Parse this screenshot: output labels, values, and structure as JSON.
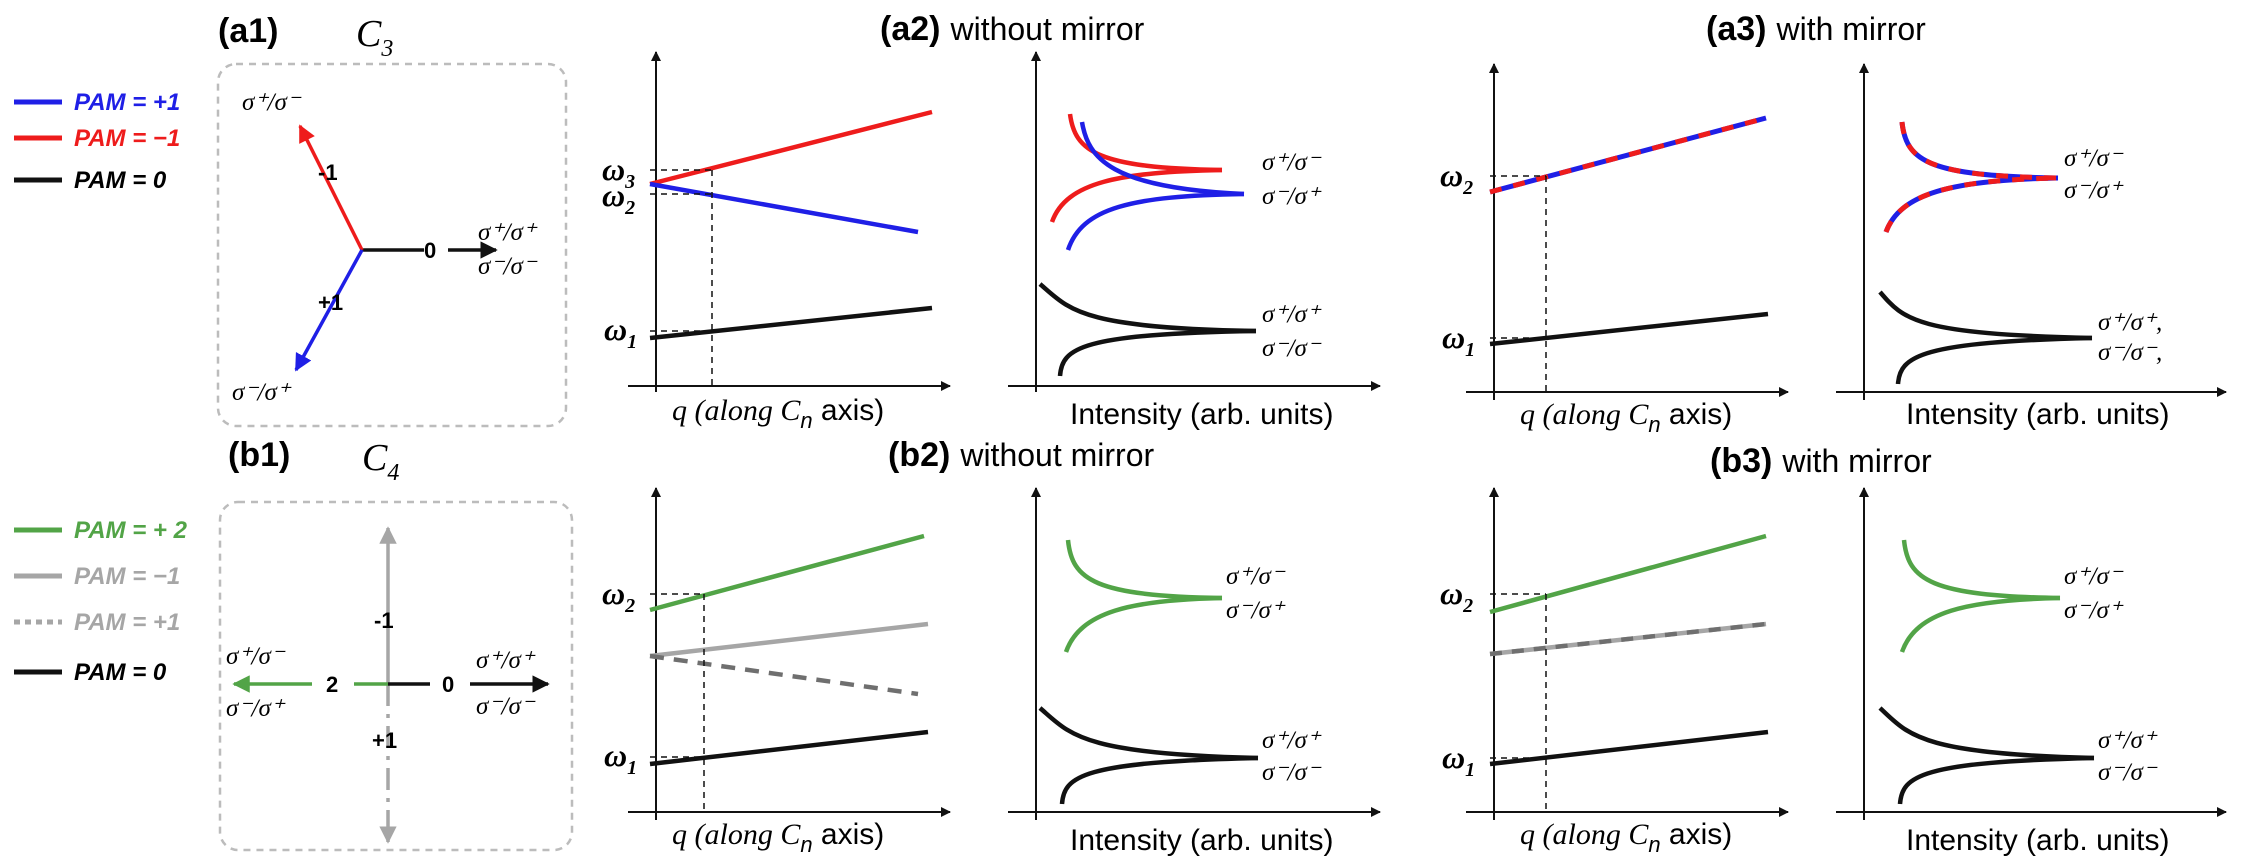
{
  "colors": {
    "blue": "#1f1fe6",
    "red": "#ee1c1c",
    "black": "#111111",
    "green": "#52a447",
    "gray": "#a6a6a6",
    "darkgray": "#6f6f6f",
    "box": "#bcbcbc"
  },
  "panels": {
    "a1": {
      "label": "(a1)",
      "symmetry": "C",
      "sub": "3"
    },
    "a2": {
      "label": "(a2)",
      "title": "without mirror"
    },
    "a3": {
      "label": "(a3)",
      "title": "with mirror"
    },
    "b1": {
      "label": "(b1)",
      "symmetry": "C",
      "sub": "4"
    },
    "b2": {
      "label": "(b2)",
      "title": "without mirror"
    },
    "b3": {
      "label": "(b3)",
      "title": "with mirror"
    }
  },
  "legend_a": [
    {
      "text": "PAM = +1",
      "color": "blue",
      "style": "solid"
    },
    {
      "text": "PAM = −1",
      "color": "red",
      "style": "solid"
    },
    {
      "text": "PAM = 0",
      "color": "black",
      "style": "solid"
    }
  ],
  "legend_b": [
    {
      "text": "PAM = + 2",
      "color": "green",
      "style": "solid"
    },
    {
      "text": "PAM = −1",
      "color": "gray",
      "style": "solid"
    },
    {
      "text": "PAM = +1",
      "color": "gray",
      "style": "dotted"
    },
    {
      "text": "PAM = 0",
      "color": "black",
      "style": "solid"
    }
  ],
  "c3": {
    "top": "σ⁺/σ⁻",
    "right1": "σ⁺/σ⁺",
    "right2": "σ⁻/σ⁻",
    "bottom": "σ⁻/σ⁺",
    "n_minus1": "-1",
    "n_zero": "0",
    "n_plus1": "+1"
  },
  "c4": {
    "left1": "σ⁺/σ⁻",
    "left2": "σ⁻/σ⁺",
    "right1": "σ⁺/σ⁺",
    "right2": "σ⁻/σ⁻",
    "n_minus1": "-1",
    "n_zero": "0",
    "n_plus1": "+1",
    "n_two": "2"
  },
  "axes": {
    "dispersion_x": "q (along C",
    "dispersion_sub": "n",
    "dispersion_tail": " axis)",
    "spectrum_x": "Intensity (arb. units)"
  },
  "omegas": {
    "w1": "ω",
    "w1_sub": "1",
    "w2": "ω",
    "w2_sub": "2",
    "w3": "ω",
    "w3_sub": "3"
  },
  "pol": {
    "pm": "σ⁺/σ⁻",
    "mp": "σ⁻/σ⁺",
    "pp": "σ⁺/σ⁺",
    "mm": "σ⁻/σ⁻",
    "pp_comma": "σ⁺/σ⁺,",
    "mm_comma": "σ⁻/σ⁻,"
  }
}
